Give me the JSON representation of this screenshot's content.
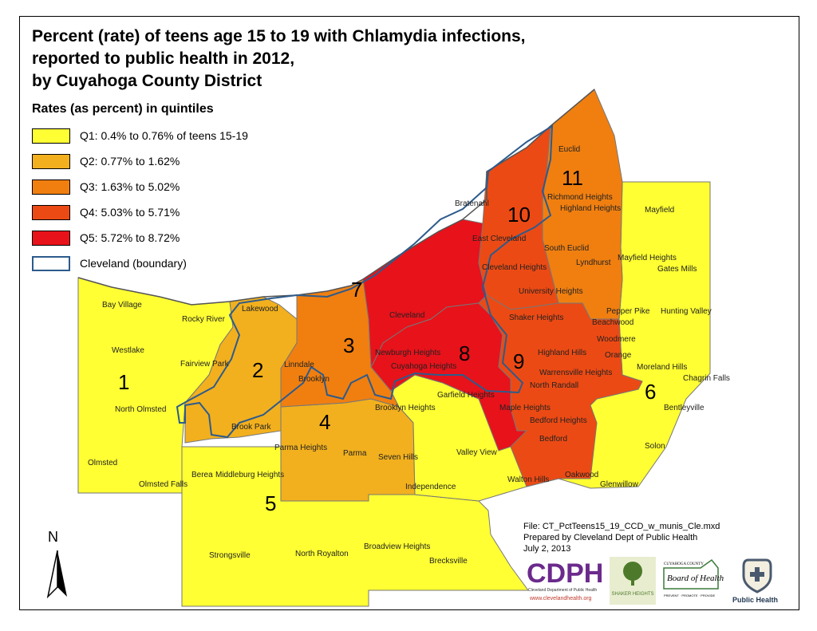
{
  "title": {
    "line1": "Percent (rate) of teens age 15 to 19 with Chlamydia infections,",
    "line2": "reported to public health in 2012,",
    "line3": "by Cuyahoga County District"
  },
  "legend": {
    "heading": "Rates (as percent) in quintiles",
    "items": [
      {
        "label": "Q1: 0.4% to 0.76% of teens 15-19",
        "color": "#ffff33"
      },
      {
        "label": "Q2: 0.77% to 1.62%",
        "color": "#f2b01e"
      },
      {
        "label": "Q3: 1.63% to 5.02%",
        "color": "#f07f10"
      },
      {
        "label": "Q4: 5.03% to 5.71%",
        "color": "#ec4a14"
      },
      {
        "label": "Q5: 5.72% to 8.72%",
        "color": "#e8121a"
      },
      {
        "label": "Cleveland (boundary)",
        "color": "#2d5b8c"
      }
    ]
  },
  "districts": [
    {
      "number": "1",
      "quintile": "Q1"
    },
    {
      "number": "2",
      "quintile": "Q2"
    },
    {
      "number": "3",
      "quintile": "Q3"
    },
    {
      "number": "4",
      "quintile": "Q2"
    },
    {
      "number": "5",
      "quintile": "Q1"
    },
    {
      "number": "6",
      "quintile": "Q1"
    },
    {
      "number": "7",
      "quintile": "Q5"
    },
    {
      "number": "8",
      "quintile": "Q5"
    },
    {
      "number": "9",
      "quintile": "Q4"
    },
    {
      "number": "10",
      "quintile": "Q4"
    },
    {
      "number": "11",
      "quintile": "Q3"
    }
  ],
  "municipalities": [
    "Euclid",
    "Bratenahl",
    "Richmond Heights",
    "Highland Heights",
    "Mayfield",
    "East Cleveland",
    "South Euclid",
    "Lyndhurst",
    "Cleveland Heights",
    "Mayfield Heights",
    "Gates Mills",
    "University Heights",
    "Lakewood",
    "Bay Village",
    "Rocky River",
    "Cleveland",
    "Pepper Pike",
    "Hunting Valley",
    "Shaker Heights",
    "Beachwood",
    "Woodmere",
    "Westlake",
    "Newburgh Heights",
    "Highland Hills",
    "Orange",
    "Fairview Park",
    "Linndale",
    "Cuyahoga Heights",
    "Warrensville Heights",
    "Moreland Hills",
    "Chagrin Falls",
    "Brooklyn",
    "North Randall",
    "Garfield Heights",
    "North Olmsted",
    "Brooklyn Heights",
    "Maple Heights",
    "Bentleyville",
    "Brook Park",
    "Bedford Heights",
    "Parma Heights",
    "Bedford",
    "Solon",
    "Parma",
    "Seven Hills",
    "Olmsted",
    "Valley View",
    "Berea",
    "Middleburg Heights",
    "Oakwood",
    "Olmsted Falls",
    "Independence",
    "Walton Hills",
    "Glenwillow",
    "Strongsville",
    "North Royalton",
    "Broadview Heights",
    "Brecksville"
  ],
  "north_label": "N",
  "file_info": {
    "line1": "File: CT_PctTeens15_19_CCD_w_munis_Cle.mxd",
    "line2": "Prepared by Cleveland Dept of Public Health",
    "line3": "July 2, 2013"
  },
  "logos": {
    "cdph": "CDPH",
    "cdph_sub": "Cleveland Department of Public Health",
    "cdph_url": "www.clevelandhealth.org",
    "shaker": "SHAKER HEIGHTS",
    "board_county": "CUYAHOGA COUNTY",
    "board_name": "Board of Health",
    "board_tag": "PREVENT · PROMOTE · PROVIDE",
    "public_health": "Public Health"
  },
  "colors": {
    "q1": "#ffff33",
    "q2": "#f2b01e",
    "q3": "#f07f10",
    "q4": "#ec4a14",
    "q5": "#e8121a",
    "cleveland_boundary": "#2d5b8c",
    "cdph_purple": "#6b2a8c",
    "shaker_green": "#4d7a2a"
  }
}
